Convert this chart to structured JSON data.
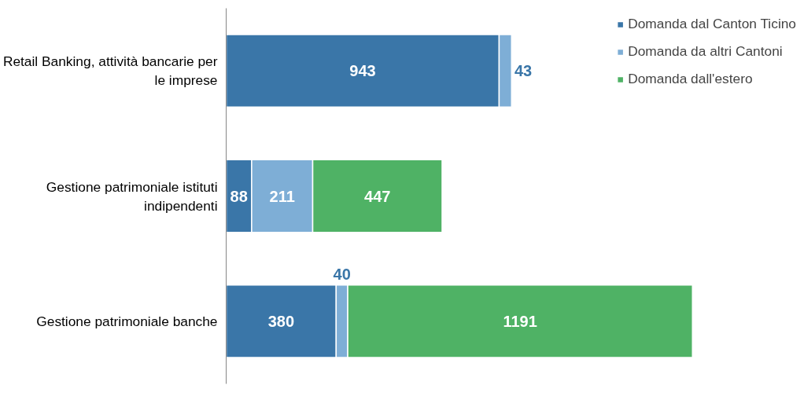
{
  "chart_data": {
    "type": "bar",
    "orientation": "horizontal",
    "stacked": true,
    "data_labels": true,
    "legend": "top right",
    "grid": false,
    "categories": [
      "Retail Banking, attività bancarie per le imprese",
      "Gestione patrimoniale istituti indipendenti",
      "Gestione patrimoniale banche"
    ],
    "series": [
      {
        "name": "Domanda dal Canton Ticino",
        "color": "#3a76a8",
        "values": [
          943,
          88,
          380
        ]
      },
      {
        "name": "Domanda da altri Cantoni",
        "color": "#7eaed6",
        "values": [
          43,
          211,
          40
        ]
      },
      {
        "name": "Domanda dall'estero",
        "color": "#4fb265",
        "values": [
          null,
          447,
          1191
        ]
      }
    ]
  }
}
